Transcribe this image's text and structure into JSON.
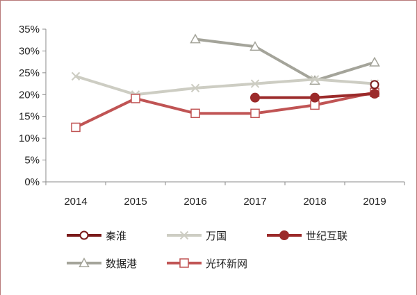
{
  "chart_data": {
    "type": "line",
    "title": "",
    "xlabel": "",
    "ylabel": "",
    "x": [
      "2014",
      "2015",
      "2016",
      "2017",
      "2018",
      "2019"
    ],
    "ylim": [
      0,
      35
    ],
    "yticks": [
      "0%",
      "5%",
      "10%",
      "15%",
      "20%",
      "25%",
      "30%",
      "35%"
    ],
    "ytick_values": [
      0,
      5,
      10,
      15,
      20,
      25,
      30,
      35
    ],
    "grid": false,
    "legend_position": "bottom",
    "series": [
      {
        "name": "秦淮",
        "values": [
          null,
          null,
          null,
          null,
          null,
          22.3
        ],
        "color": "#7a1a1a",
        "marker": "circle-open"
      },
      {
        "name": "万国",
        "values": [
          24.2,
          20.0,
          21.5,
          22.5,
          23.5,
          22.5
        ],
        "color": "#cdcdc3",
        "marker": "x"
      },
      {
        "name": "世纪互联",
        "values": [
          null,
          null,
          null,
          19.3,
          19.3,
          20.2
        ],
        "color": "#9b2a2a",
        "marker": "circle-filled"
      },
      {
        "name": "数据港",
        "values": [
          null,
          null,
          32.7,
          31.0,
          23.2,
          27.4
        ],
        "color": "#a4a49a",
        "marker": "triangle-open"
      },
      {
        "name": "光环新网",
        "values": [
          12.5,
          19.1,
          15.7,
          15.7,
          17.6,
          20.5
        ],
        "color": "#c05454",
        "marker": "square-open"
      }
    ]
  }
}
